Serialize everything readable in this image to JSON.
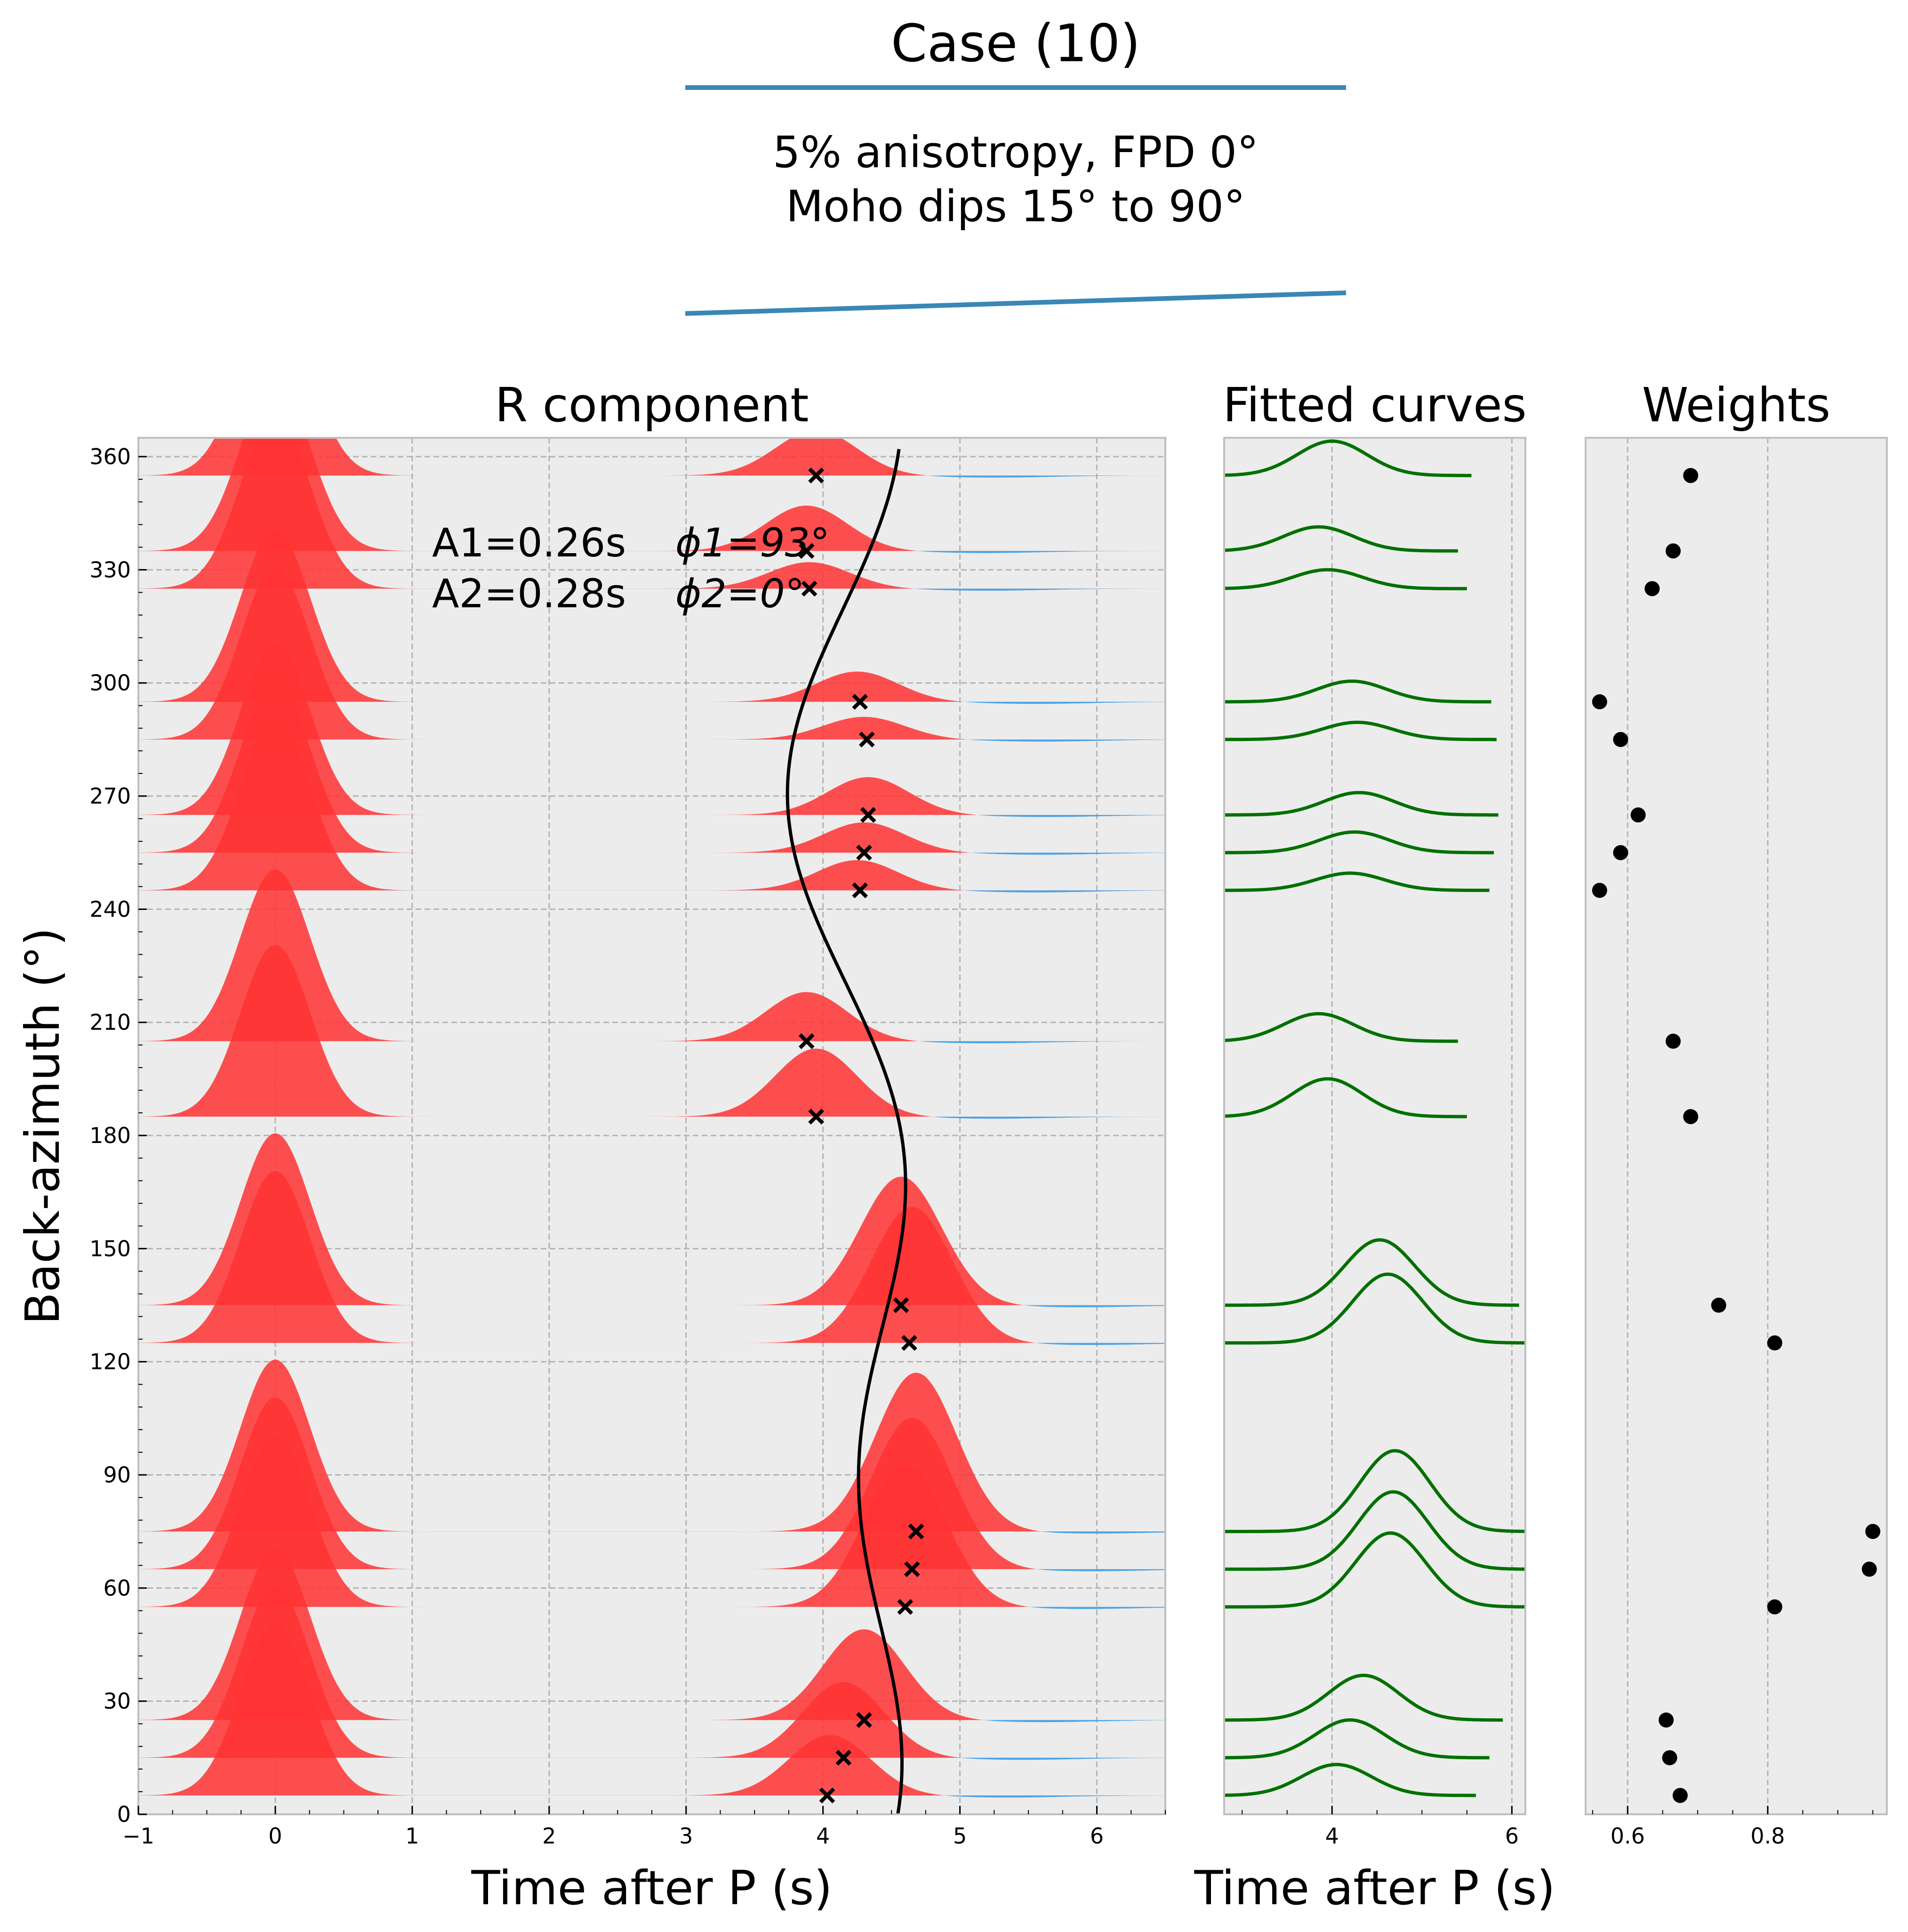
{
  "header": {
    "title": "Case (10)",
    "subtitle_line1": "5% anisotropy, FPD 0°",
    "subtitle_line2": "Moho dips 15° to 90°",
    "line_color": "#3a87b5"
  },
  "panels": {
    "r_component": {
      "title": "R component",
      "xlabel": "Time after P (s)",
      "ylabel": "Back-azimuth (°)",
      "xticks": [
        "−1",
        "0",
        "1",
        "2",
        "3",
        "4",
        "5",
        "6"
      ],
      "yticks": [
        "0",
        "30",
        "60",
        "90",
        "120",
        "150",
        "180",
        "210",
        "240",
        "270",
        "300",
        "330",
        "360"
      ],
      "annotation": {
        "a1": "A1=0.26s",
        "phi1": "ϕ1=93°",
        "a2": "A2=0.28s",
        "phi2": "ϕ2=0°"
      }
    },
    "fitted": {
      "title": "Fitted curves",
      "xlabel": "Time after P (s)",
      "xticks": [
        "4",
        "6"
      ]
    },
    "weights": {
      "title": "Weights",
      "xticks": [
        "0.6",
        "0.8"
      ]
    }
  },
  "chart_data": [
    {
      "type": "area",
      "panel": "R component",
      "title": "R component",
      "xlabel": "Time after P (s)",
      "ylabel": "Back-azimuth (°)",
      "xlim": [
        -1,
        6.5
      ],
      "ylim": [
        0,
        365
      ],
      "grid": true,
      "positive_fill": "#ff3333",
      "negative_fill": "#4da3e6",
      "traces": [
        {
          "baz": 5,
          "ps_time": 4.05,
          "ps_amp": 0.16,
          "p_amp": 1.0
        },
        {
          "baz": 15,
          "ps_time": 4.15,
          "ps_amp": 0.2,
          "p_amp": 1.0
        },
        {
          "baz": 25,
          "ps_time": 4.3,
          "ps_amp": 0.24,
          "p_amp": 1.0
        },
        {
          "baz": 55,
          "ps_time": 4.6,
          "ps_amp": 0.38,
          "p_amp": 1.0
        },
        {
          "baz": 65,
          "ps_time": 4.65,
          "ps_amp": 0.4,
          "p_amp": 1.0
        },
        {
          "baz": 75,
          "ps_time": 4.68,
          "ps_amp": 0.42,
          "p_amp": 1.0
        },
        {
          "baz": 125,
          "ps_time": 4.65,
          "ps_amp": 0.36,
          "p_amp": 1.0
        },
        {
          "baz": 135,
          "ps_time": 4.57,
          "ps_amp": 0.34,
          "p_amp": 1.0
        },
        {
          "baz": 185,
          "ps_time": 3.95,
          "ps_amp": 0.18,
          "p_amp": 1.0
        },
        {
          "baz": 205,
          "ps_time": 3.88,
          "ps_amp": 0.13,
          "p_amp": 1.0
        },
        {
          "baz": 245,
          "ps_time": 4.25,
          "ps_amp": 0.08,
          "p_amp": 1.0
        },
        {
          "baz": 255,
          "ps_time": 4.3,
          "ps_amp": 0.08,
          "p_amp": 1.0
        },
        {
          "baz": 265,
          "ps_time": 4.33,
          "ps_amp": 0.1,
          "p_amp": 1.0
        },
        {
          "baz": 285,
          "ps_time": 4.3,
          "ps_amp": 0.06,
          "p_amp": 1.0
        },
        {
          "baz": 295,
          "ps_time": 4.25,
          "ps_amp": 0.08,
          "p_amp": 1.0
        },
        {
          "baz": 325,
          "ps_time": 3.9,
          "ps_amp": 0.07,
          "p_amp": 1.0
        },
        {
          "baz": 335,
          "ps_time": 3.88,
          "ps_amp": 0.12,
          "p_amp": 1.0
        },
        {
          "baz": 355,
          "ps_time": 3.95,
          "ps_amp": 0.12,
          "p_amp": 1.0
        }
      ],
      "markers": [
        {
          "baz": 5,
          "t": 4.03
        },
        {
          "baz": 15,
          "t": 4.15
        },
        {
          "baz": 25,
          "t": 4.3
        },
        {
          "baz": 55,
          "t": 4.6
        },
        {
          "baz": 65,
          "t": 4.65
        },
        {
          "baz": 75,
          "t": 4.68
        },
        {
          "baz": 125,
          "t": 4.63
        },
        {
          "baz": 135,
          "t": 4.57
        },
        {
          "baz": 185,
          "t": 3.95
        },
        {
          "baz": 205,
          "t": 3.88
        },
        {
          "baz": 245,
          "t": 4.27
        },
        {
          "baz": 255,
          "t": 4.3
        },
        {
          "baz": 265,
          "t": 4.33
        },
        {
          "baz": 285,
          "t": 4.32
        },
        {
          "baz": 295,
          "t": 4.27
        },
        {
          "baz": 325,
          "t": 3.9
        },
        {
          "baz": 335,
          "t": 3.88
        },
        {
          "baz": 355,
          "t": 3.95
        }
      ],
      "fit_curve": {
        "mean": 4.28,
        "A1": 0.26,
        "phi1": 93,
        "A2": 0.28,
        "phi2": 0
      }
    },
    {
      "type": "line",
      "panel": "Fitted curves",
      "title": "Fitted curves",
      "xlabel": "Time after P (s)",
      "xlim": [
        2.8,
        6.15
      ],
      "line_color": "#007000",
      "curves": [
        {
          "baz": 5,
          "center": 4.05,
          "amp": 0.18
        },
        {
          "baz": 15,
          "center": 4.2,
          "amp": 0.22
        },
        {
          "baz": 25,
          "center": 4.35,
          "amp": 0.26
        },
        {
          "baz": 55,
          "center": 4.65,
          "amp": 0.43
        },
        {
          "baz": 65,
          "center": 4.68,
          "amp": 0.45
        },
        {
          "baz": 75,
          "center": 4.7,
          "amp": 0.47
        },
        {
          "baz": 125,
          "center": 4.62,
          "amp": 0.4
        },
        {
          "baz": 135,
          "center": 4.53,
          "amp": 0.38
        },
        {
          "baz": 185,
          "center": 3.95,
          "amp": 0.22
        },
        {
          "baz": 205,
          "center": 3.85,
          "amp": 0.16
        },
        {
          "baz": 245,
          "center": 4.2,
          "amp": 0.1
        },
        {
          "baz": 255,
          "center": 4.25,
          "amp": 0.12
        },
        {
          "baz": 265,
          "center": 4.3,
          "amp": 0.13
        },
        {
          "baz": 285,
          "center": 4.28,
          "amp": 0.1
        },
        {
          "baz": 295,
          "center": 4.22,
          "amp": 0.12
        },
        {
          "baz": 325,
          "center": 3.95,
          "amp": 0.11
        },
        {
          "baz": 335,
          "center": 3.85,
          "amp": 0.14
        },
        {
          "baz": 355,
          "center": 4.0,
          "amp": 0.2
        }
      ]
    },
    {
      "type": "scatter",
      "panel": "Weights",
      "title": "Weights",
      "xlim": [
        0.54,
        0.97
      ],
      "points": [
        {
          "baz": 5,
          "w": 0.675
        },
        {
          "baz": 15,
          "w": 0.66
        },
        {
          "baz": 25,
          "w": 0.655
        },
        {
          "baz": 55,
          "w": 0.81
        },
        {
          "baz": 65,
          "w": 0.945
        },
        {
          "baz": 75,
          "w": 0.95
        },
        {
          "baz": 125,
          "w": 0.81
        },
        {
          "baz": 135,
          "w": 0.73
        },
        {
          "baz": 185,
          "w": 0.69
        },
        {
          "baz": 205,
          "w": 0.665
        },
        {
          "baz": 245,
          "w": 0.56
        },
        {
          "baz": 255,
          "w": 0.59
        },
        {
          "baz": 265,
          "w": 0.615
        },
        {
          "baz": 285,
          "w": 0.59
        },
        {
          "baz": 295,
          "w": 0.56
        },
        {
          "baz": 325,
          "w": 0.635
        },
        {
          "baz": 335,
          "w": 0.665
        },
        {
          "baz": 355,
          "w": 0.69
        }
      ]
    }
  ]
}
